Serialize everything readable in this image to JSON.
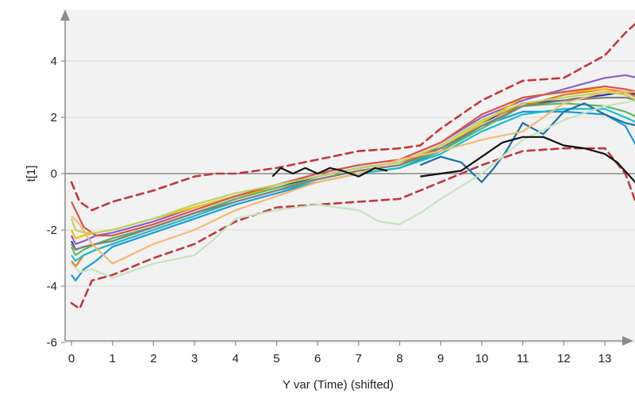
{
  "chart_data": {
    "type": "line",
    "xlabel": "Y var (Time) (shifted)",
    "ylabel": "t[1]",
    "xlim": [
      -0.2,
      13.8
    ],
    "ylim": [
      -6,
      5.6
    ],
    "xticks": [
      0,
      1,
      2,
      3,
      4,
      5,
      6,
      7,
      8,
      9,
      10,
      11,
      12,
      13
    ],
    "yticks": [
      -6,
      -4,
      -2,
      0,
      2,
      4
    ],
    "grid": "horizontal",
    "background": "#f2f2f2",
    "zero_line_color": "#888888",
    "limit_color": "#c0393b",
    "limits": [
      {
        "x": [
          0,
          0.2,
          0.5,
          1,
          2,
          3,
          3.5,
          4,
          5,
          6,
          7,
          8,
          8.5,
          9,
          10,
          11,
          12,
          12.5,
          13,
          13.5,
          13.8
        ],
        "y": [
          -0.3,
          -1,
          -1.3,
          -1,
          -0.6,
          -0.1,
          0,
          0,
          0.2,
          0.5,
          0.8,
          0.9,
          1,
          1.6,
          2.6,
          3.3,
          3.4,
          3.8,
          4.2,
          5,
          5.4
        ]
      },
      {
        "x": [
          0,
          0.2,
          0.5,
          1,
          2,
          3,
          4,
          5,
          6,
          7,
          8,
          9,
          10,
          11,
          12,
          13,
          13.5,
          13.8
        ],
        "y": [
          -4.6,
          -4.8,
          -3.8,
          -3.6,
          -3,
          -2.5,
          -1.7,
          -1.2,
          -1.1,
          -1,
          -0.9,
          -0.3,
          0.3,
          0.8,
          0.9,
          0.9,
          0,
          -1.2
        ]
      }
    ],
    "series": [
      {
        "color": "#2b3990",
        "x": [
          0,
          0.1,
          0.3,
          0.6,
          1,
          2,
          3,
          4,
          5,
          6,
          7,
          8,
          9,
          10,
          11,
          12,
          13,
          13.5,
          13.8
        ],
        "y": [
          -2.4,
          -2.7,
          -2.6,
          -2.5,
          -2.3,
          -1.9,
          -1.4,
          -0.9,
          -0.5,
          -0.1,
          0.2,
          0.4,
          0.9,
          1.8,
          2.5,
          2.6,
          2.8,
          2.9,
          2.8
        ]
      },
      {
        "color": "#e07b24",
        "x": [
          0,
          0.1,
          0.3,
          0.6,
          1,
          2,
          3,
          4,
          5,
          6,
          7,
          8,
          9,
          10,
          11,
          12,
          13,
          13.5,
          13.8
        ],
        "y": [
          -3.1,
          -3.3,
          -2.9,
          -2.7,
          -2.5,
          -2,
          -1.5,
          -1,
          -0.6,
          -0.2,
          0.1,
          0.3,
          1,
          1.9,
          2.4,
          2.8,
          3,
          2.9,
          2.7
        ]
      },
      {
        "color": "#8a5ec9",
        "x": [
          0,
          0.1,
          0.3,
          0.6,
          1,
          2,
          3,
          4,
          5,
          6,
          7,
          8,
          9,
          10,
          11,
          12,
          13,
          13.5,
          13.8
        ],
        "y": [
          -2.2,
          -2.5,
          -2.4,
          -2.2,
          -2.1,
          -1.7,
          -1.2,
          -0.8,
          -0.4,
          0,
          0.3,
          0.5,
          1.1,
          2,
          2.6,
          3,
          3.4,
          3.5,
          3.4
        ]
      },
      {
        "color": "#1f9ad6",
        "x": [
          0,
          0.1,
          0.3,
          0.6,
          1,
          2,
          3,
          4,
          5,
          6,
          7,
          8,
          9,
          10,
          11,
          12,
          13,
          13.5,
          13.8
        ],
        "y": [
          -3.6,
          -3.8,
          -3.4,
          -3.1,
          -2.6,
          -2.1,
          -1.6,
          -1.1,
          -0.7,
          -0.3,
          0,
          0.2,
          0.8,
          1.7,
          2.2,
          2.2,
          2.1,
          1.7,
          0.9
        ]
      },
      {
        "color": "#f2c200",
        "x": [
          0,
          0.1,
          0.3,
          0.6,
          1,
          2,
          3,
          4,
          5,
          6,
          7,
          8,
          9,
          10,
          11,
          12,
          13,
          13.5,
          13.8
        ],
        "y": [
          -2,
          -2.3,
          -2.2,
          -2.1,
          -2,
          -1.6,
          -1.2,
          -0.8,
          -0.5,
          -0.2,
          0.1,
          0.3,
          0.9,
          1.8,
          2.7,
          2.9,
          3,
          2.8,
          2.6
        ]
      },
      {
        "color": "#5cb85c",
        "x": [
          0,
          0.1,
          0.3,
          0.6,
          1,
          2,
          3,
          4,
          5,
          6,
          7,
          8,
          9,
          10,
          11,
          12,
          13,
          13.5,
          13.8
        ],
        "y": [
          -2.6,
          -2.9,
          -2.7,
          -2.5,
          -2.3,
          -1.9,
          -1.4,
          -0.9,
          -0.5,
          -0.2,
          0.1,
          0.3,
          0.8,
          1.6,
          2.4,
          2.5,
          2.4,
          2.2,
          2
        ]
      },
      {
        "color": "#d9534f",
        "x": [
          0,
          0.1,
          0.3,
          0.6,
          1,
          2,
          3,
          4,
          5,
          6,
          7,
          8,
          9,
          10,
          11,
          12,
          13,
          13.5,
          13.8
        ],
        "y": [
          -1,
          -1.3,
          -1.9,
          -2.2,
          -2.2,
          -1.8,
          -1.3,
          -0.8,
          -0.4,
          0,
          0.3,
          0.5,
          1.1,
          2.1,
          2.7,
          2.9,
          3.1,
          3,
          2.9
        ]
      },
      {
        "color": "#17becf",
        "x": [
          0,
          0.1,
          0.3,
          0.6,
          1,
          2,
          3,
          4,
          5,
          6,
          7,
          8,
          9,
          10,
          11,
          12,
          13,
          13.5,
          13.8
        ],
        "y": [
          -2.9,
          -3.1,
          -2.9,
          -2.7,
          -2.5,
          -2,
          -1.5,
          -1,
          -0.6,
          -0.3,
          0,
          0.2,
          0.7,
          1.5,
          2.1,
          2.3,
          2.3,
          2,
          1.8
        ]
      },
      {
        "color": "#7f7f7f",
        "x": [
          0,
          0.1,
          0.3,
          0.6,
          1,
          2,
          3,
          4,
          5,
          6,
          7,
          8,
          9,
          10,
          11,
          12,
          13,
          13.5,
          13.8
        ],
        "y": [
          -2.5,
          -2.7,
          -2.6,
          -2.5,
          -2.4,
          -1.9,
          -1.4,
          -1,
          -0.6,
          -0.2,
          0.1,
          0.3,
          0.9,
          1.7,
          2.4,
          2.6,
          2.7,
          2.7,
          2.6
        ]
      },
      {
        "color": "#bcd35f",
        "x": [
          0,
          0.1,
          0.3,
          0.6,
          1,
          2,
          3,
          4,
          5,
          6,
          7,
          8,
          9,
          10,
          11,
          12,
          13,
          13.5,
          13.8
        ],
        "y": [
          -1.6,
          -2,
          -2.1,
          -2.1,
          -2,
          -1.6,
          -1.1,
          -0.7,
          -0.4,
          -0.1,
          0.2,
          0.4,
          1,
          1.9,
          2.5,
          2.7,
          2.9,
          2.8,
          2.6
        ]
      },
      {
        "color": "#1a6fa8",
        "x": [
          8.5,
          9,
          9.5,
          10,
          10.3,
          10.6,
          11,
          11.5,
          12,
          12.5,
          13,
          13.5,
          13.8
        ],
        "y": [
          0.3,
          0.6,
          0.4,
          -0.3,
          0.2,
          0.8,
          1.8,
          1.4,
          2.2,
          2.5,
          2.1,
          1.8,
          1.7
        ]
      },
      {
        "color": "#c7e3c0",
        "x": [
          0,
          0.2,
          0.5,
          1,
          2,
          3,
          3.5,
          4,
          5,
          6,
          7,
          7.5,
          8,
          8.5,
          9,
          10,
          11,
          12,
          13,
          13.8
        ],
        "y": [
          -3.2,
          -3.5,
          -3.4,
          -3.7,
          -3.2,
          -2.9,
          -2.3,
          -1.6,
          -1.3,
          -1.1,
          -1.3,
          -1.7,
          -1.8,
          -1.4,
          -0.9,
          0,
          1.2,
          1.9,
          2.4,
          2.6
        ]
      },
      {
        "color": "#f5b971",
        "x": [
          0,
          0.2,
          0.5,
          1,
          2,
          3,
          4,
          5,
          6,
          7,
          8,
          9,
          10,
          11,
          12,
          13,
          13.8
        ],
        "y": [
          -1.5,
          -1.8,
          -2.5,
          -3.2,
          -2.5,
          -2,
          -1.3,
          -0.8,
          -0.3,
          0,
          0.5,
          0.8,
          1.2,
          1.5,
          2.5,
          2.9,
          2.9
        ]
      },
      {
        "color": "#111111",
        "x": [
          4.9,
          5.1,
          5.4,
          5.7,
          6,
          6.3,
          6.6,
          7,
          7.4,
          7.7
        ],
        "y": [
          -0.1,
          0.2,
          0,
          0.2,
          0,
          0.2,
          0.1,
          -0.1,
          0.2,
          0.1
        ]
      },
      {
        "color": "#111111",
        "x": [
          8.5,
          9,
          9.5,
          10,
          10.5,
          11,
          11.5,
          12,
          12.5,
          13,
          13.3,
          13.8
        ],
        "y": [
          -0.1,
          0,
          0.1,
          0.6,
          1.1,
          1.3,
          1.3,
          1.0,
          0.9,
          0.7,
          0.4,
          -0.4
        ]
      }
    ]
  }
}
